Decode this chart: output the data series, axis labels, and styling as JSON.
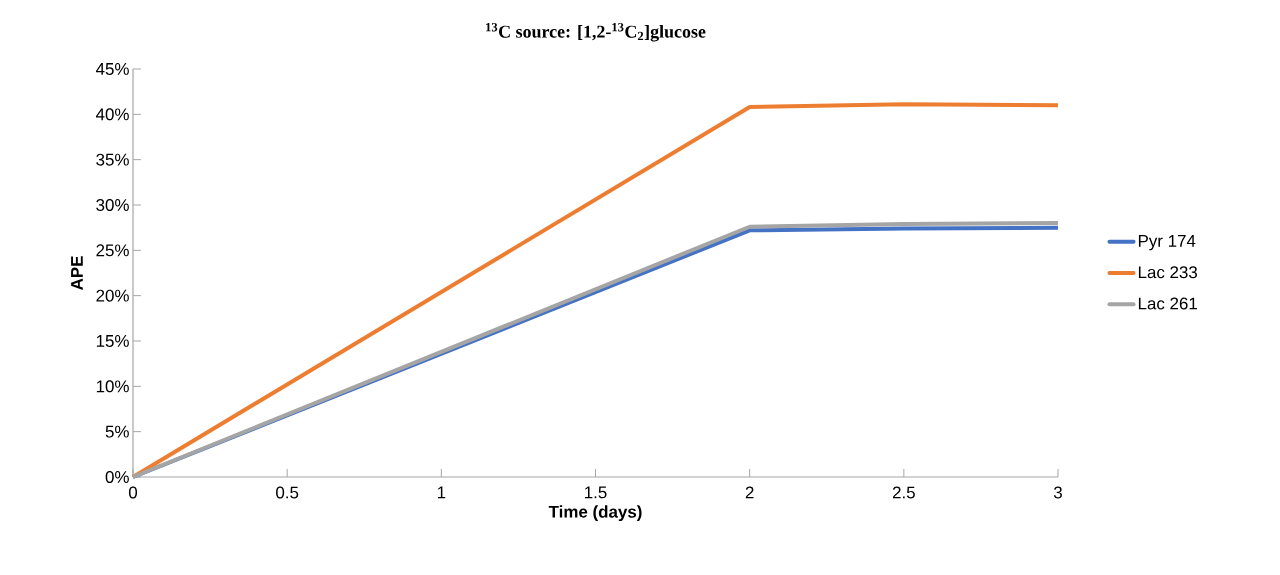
{
  "chart_data": {
    "type": "line",
    "title": "$^{13}$C source: [1,2-$^{13}$C$_{2}$]glucose",
    "xlabel": "Time (days)",
    "ylabel": "APE",
    "x": [
      0,
      2,
      2.5,
      3
    ],
    "series": [
      {
        "name": "Pyr 174",
        "color": "#4472c4",
        "values": [
          0,
          27.2,
          27.4,
          27.5
        ]
      },
      {
        "name": "Lac 233",
        "color": "#ed7d31",
        "values": [
          0,
          40.8,
          41.1,
          41.0
        ]
      },
      {
        "name": "Lac 261",
        "color": "#a5a5a5",
        "values": [
          0,
          27.6,
          27.9,
          28.0
        ]
      }
    ],
    "xlim": [
      0,
      3
    ],
    "xticks": [
      0,
      0.5,
      1,
      1.5,
      2,
      2.5,
      3
    ],
    "ylim": [
      0,
      45
    ],
    "yticks": [
      {
        "value": 0,
        "label": "0%"
      },
      {
        "value": 5,
        "label": "5%"
      },
      {
        "value": 10,
        "label": "10%"
      },
      {
        "value": 15,
        "label": "15%"
      },
      {
        "value": 20,
        "label": "20%"
      },
      {
        "value": 25,
        "label": "25%"
      },
      {
        "value": 30,
        "label": "30%"
      },
      {
        "value": 35,
        "label": "35%"
      },
      {
        "value": 40,
        "label": "40%"
      },
      {
        "value": 45,
        "label": "45%"
      }
    ],
    "grid": false,
    "legend": "right",
    "marker": "none",
    "line_style": "solid"
  }
}
